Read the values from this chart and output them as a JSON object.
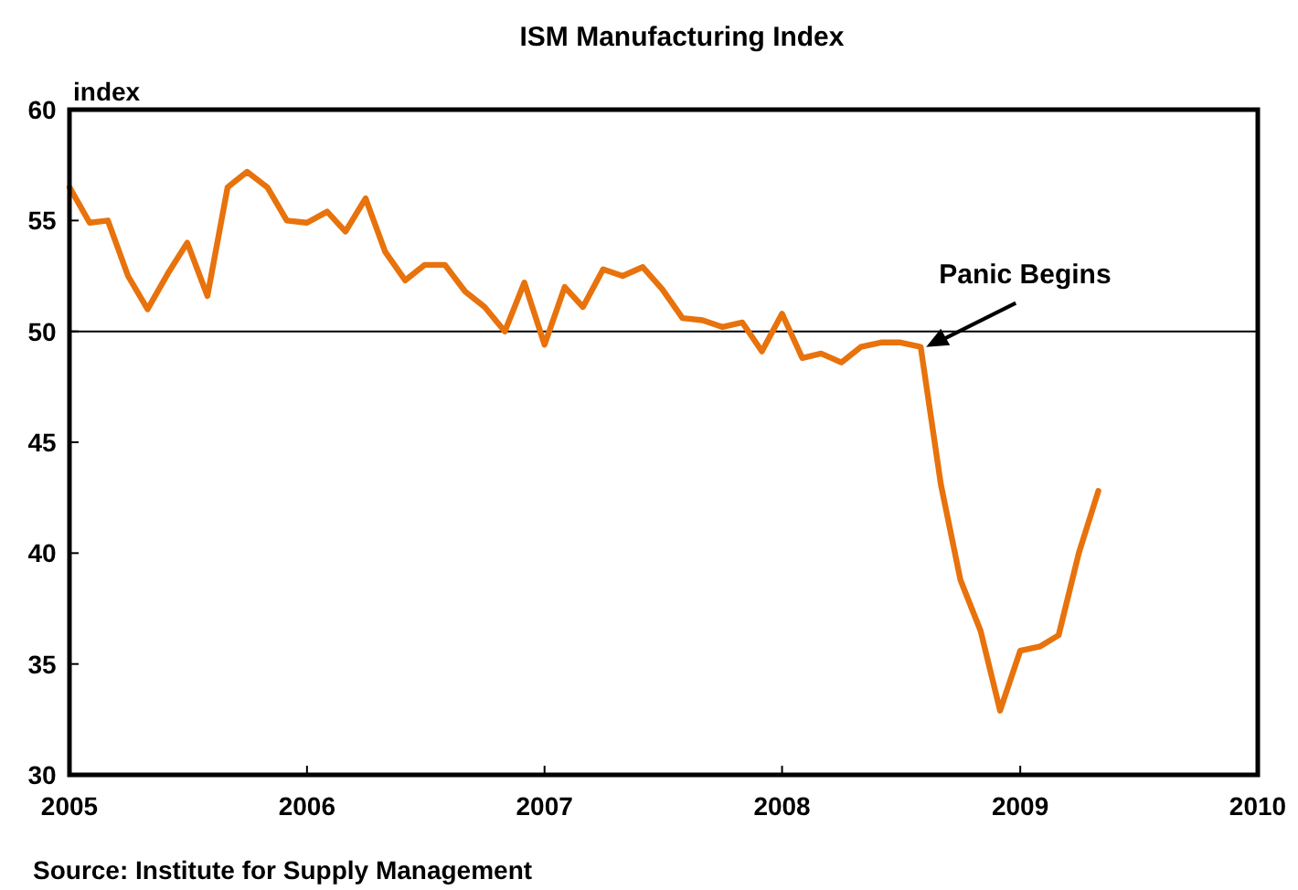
{
  "chart_data": {
    "type": "line",
    "title": "ISM Manufacturing Index",
    "ylabel": "index",
    "x": [
      "2005-01",
      "2005-02",
      "2005-03",
      "2005-04",
      "2005-05",
      "2005-06",
      "2005-07",
      "2005-08",
      "2005-09",
      "2005-10",
      "2005-11",
      "2005-12",
      "2006-01",
      "2006-02",
      "2006-03",
      "2006-04",
      "2006-05",
      "2006-06",
      "2006-07",
      "2006-08",
      "2006-09",
      "2006-10",
      "2006-11",
      "2006-12",
      "2007-01",
      "2007-02",
      "2007-03",
      "2007-04",
      "2007-05",
      "2007-06",
      "2007-07",
      "2007-08",
      "2007-09",
      "2007-10",
      "2007-11",
      "2007-12",
      "2008-01",
      "2008-02",
      "2008-03",
      "2008-04",
      "2008-05",
      "2008-06",
      "2008-07",
      "2008-08",
      "2008-09",
      "2008-10",
      "2008-11",
      "2008-12",
      "2009-01",
      "2009-02",
      "2009-03",
      "2009-04",
      "2009-05"
    ],
    "series": [
      {
        "color": "#e8720c",
        "values": [
          56.5,
          54.9,
          55.0,
          52.5,
          51.0,
          52.6,
          54.0,
          51.6,
          56.5,
          57.2,
          56.5,
          55.0,
          54.9,
          55.4,
          54.5,
          56.0,
          53.6,
          52.3,
          53.0,
          53.0,
          51.8,
          51.1,
          50.0,
          52.2,
          49.4,
          52.0,
          51.1,
          52.8,
          52.5,
          52.9,
          51.9,
          50.6,
          50.5,
          50.2,
          50.4,
          49.1,
          50.8,
          48.8,
          49.0,
          48.6,
          49.3,
          49.5,
          49.5,
          49.3,
          43.1,
          38.8,
          36.5,
          32.9,
          35.6,
          35.8,
          36.3,
          40.0,
          42.8
        ]
      }
    ],
    "xlim": [
      "2005",
      "2010"
    ],
    "xticks": [
      "2005",
      "2006",
      "2007",
      "2008",
      "2009",
      "2010"
    ],
    "ylim": [
      30,
      60
    ],
    "yticks": [
      30,
      35,
      40,
      45,
      50,
      55,
      60
    ],
    "ref_lines": [
      {
        "axis": "y",
        "value": 50,
        "color": "#000000"
      }
    ],
    "annotations": [
      {
        "text": "Panic Begins",
        "x": "2008-08",
        "y": 49.3
      },
      "Source: Institute for Supply Management"
    ],
    "grid": false,
    "line_style": "solid",
    "marker": "none"
  }
}
